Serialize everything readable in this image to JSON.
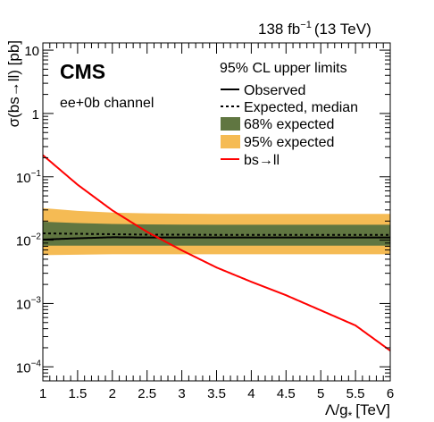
{
  "header": {
    "lumi_value": "138 fb",
    "lumi_exp": "−1",
    "energy": "(13 TeV)"
  },
  "labels": {
    "experiment": "CMS",
    "channel": "ee+0b channel"
  },
  "legend": {
    "title": "95% CL upper limits",
    "items": [
      {
        "label": "Observed",
        "style": "line",
        "color": "#000000",
        "dash": false
      },
      {
        "label": "Expected, median",
        "style": "line",
        "color": "#000000",
        "dash": true
      },
      {
        "label": "68% expected",
        "style": "box",
        "color": "#607641"
      },
      {
        "label": "95% expected",
        "style": "box",
        "color": "#F5BB54"
      },
      {
        "label": "bs→ll",
        "style": "line",
        "color": "#ff0000",
        "dash": false
      }
    ]
  },
  "chart_data": {
    "type": "line",
    "xlabel_main": "Λ/g",
    "xlabel_sub": "*",
    "xlabel_unit": "[TeV]",
    "ylabel": "σ(bs→ll) [pb]",
    "xlim": [
      1,
      6
    ],
    "ylim": [
      6e-05,
      13
    ],
    "yscale": "log",
    "x_ticks": [
      1,
      1.5,
      2,
      2.5,
      3,
      3.5,
      4,
      4.5,
      5,
      5.5,
      6
    ],
    "x_tick_labels": [
      "1",
      "1.5",
      "2",
      "2.5",
      "3",
      "3.5",
      "4",
      "4.5",
      "5",
      "5.5",
      "6"
    ],
    "y_ticks": [
      {
        "value": 10,
        "base": "10",
        "exp": ""
      },
      {
        "value": 1,
        "base": "1",
        "exp": ""
      },
      {
        "value": 0.1,
        "base": "10",
        "exp": "−1"
      },
      {
        "value": 0.01,
        "base": "10",
        "exp": "−2"
      },
      {
        "value": 0.001,
        "base": "10",
        "exp": "−3"
      },
      {
        "value": 0.0001,
        "base": "10",
        "exp": "−4"
      }
    ],
    "x": [
      1,
      1.5,
      2,
      2.5,
      3,
      3.5,
      4,
      4.5,
      5,
      5.5,
      6
    ],
    "series": [
      {
        "name": "Observed",
        "values": [
          0.0102,
          0.0107,
          0.0111,
          0.011,
          0.011,
          0.011,
          0.011,
          0.011,
          0.011,
          0.011,
          0.011
        ]
      },
      {
        "name": "Expected, median",
        "values": [
          0.0128,
          0.0126,
          0.0124,
          0.0122,
          0.0122,
          0.0121,
          0.0121,
          0.0121,
          0.0121,
          0.0121,
          0.0121
        ]
      },
      {
        "name": "68% expected",
        "band": true,
        "lower": [
          0.0082,
          0.0082,
          0.0082,
          0.0082,
          0.0082,
          0.0082,
          0.0082,
          0.0082,
          0.0082,
          0.0082,
          0.0082
        ],
        "upper": [
          0.0195,
          0.0186,
          0.018,
          0.0177,
          0.0176,
          0.0175,
          0.0175,
          0.0175,
          0.0175,
          0.0175,
          0.0175
        ]
      },
      {
        "name": "95% expected",
        "band": true,
        "lower": [
          0.0058,
          0.0059,
          0.006,
          0.006,
          0.006,
          0.006,
          0.006,
          0.006,
          0.006,
          0.006,
          0.006
        ],
        "upper": [
          0.032,
          0.029,
          0.0272,
          0.0265,
          0.0262,
          0.026,
          0.026,
          0.026,
          0.026,
          0.026,
          0.026
        ]
      },
      {
        "name": "bs→ll",
        "values": [
          0.22,
          0.075,
          0.0295,
          0.0135,
          0.0069,
          0.0037,
          0.0022,
          0.00135,
          0.00078,
          0.00045,
          0.00018
        ]
      }
    ]
  }
}
